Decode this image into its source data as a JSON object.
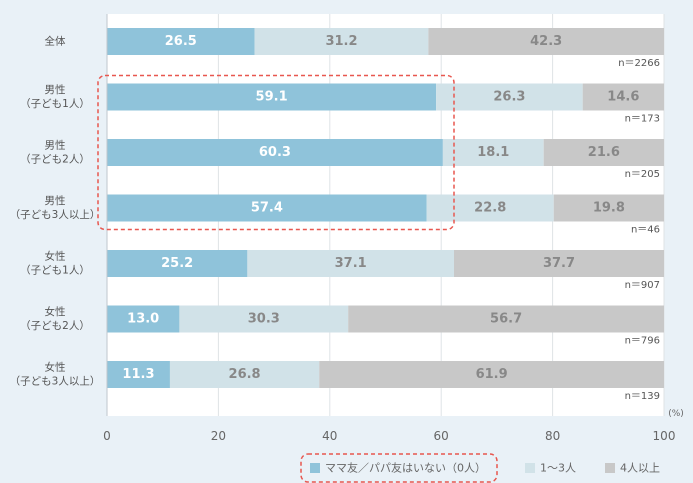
{
  "chart_data": {
    "type": "bar",
    "orientation": "horizontal",
    "stacked": true,
    "categories": [
      [
        "全体"
      ],
      [
        "男性",
        "（子ども1人）"
      ],
      [
        "男性",
        "（子ども2人）"
      ],
      [
        "男性",
        "（子ども3人以上）"
      ],
      [
        "女性",
        "（子ども1人）"
      ],
      [
        "女性",
        "（子ども2人）"
      ],
      [
        "女性",
        "（子ども3人以上）"
      ]
    ],
    "series": [
      {
        "name": "ママ友／パパ友はいない（0人）",
        "color": "#8fc3da",
        "label_color": "#ffffff",
        "values": [
          26.5,
          59.1,
          60.3,
          57.4,
          25.2,
          13.0,
          11.3
        ]
      },
      {
        "name": "1〜3人",
        "color": "#d1e2e8",
        "label_color": "#888888",
        "values": [
          31.2,
          26.3,
          18.1,
          22.8,
          37.1,
          30.3,
          26.8
        ]
      },
      {
        "name": "4人以上",
        "color": "#c8c8c8",
        "label_color": "#888888",
        "values": [
          42.3,
          14.6,
          21.6,
          19.8,
          37.7,
          56.7,
          61.9
        ]
      }
    ],
    "n_labels": [
      "n＝2266",
      "n＝173",
      "n＝205",
      "n＝46",
      "n＝907",
      "n＝796",
      "n＝139"
    ],
    "xlim": [
      0,
      100
    ],
    "xticks": [
      0,
      20,
      40,
      60,
      80,
      100
    ],
    "xunit": "(%)",
    "grid": true,
    "highlight_categories": [
      1,
      2,
      3
    ],
    "highlight_color": "#e8574f",
    "legend_position": "bottom-right",
    "legend_highlight_series": [
      0
    ]
  }
}
